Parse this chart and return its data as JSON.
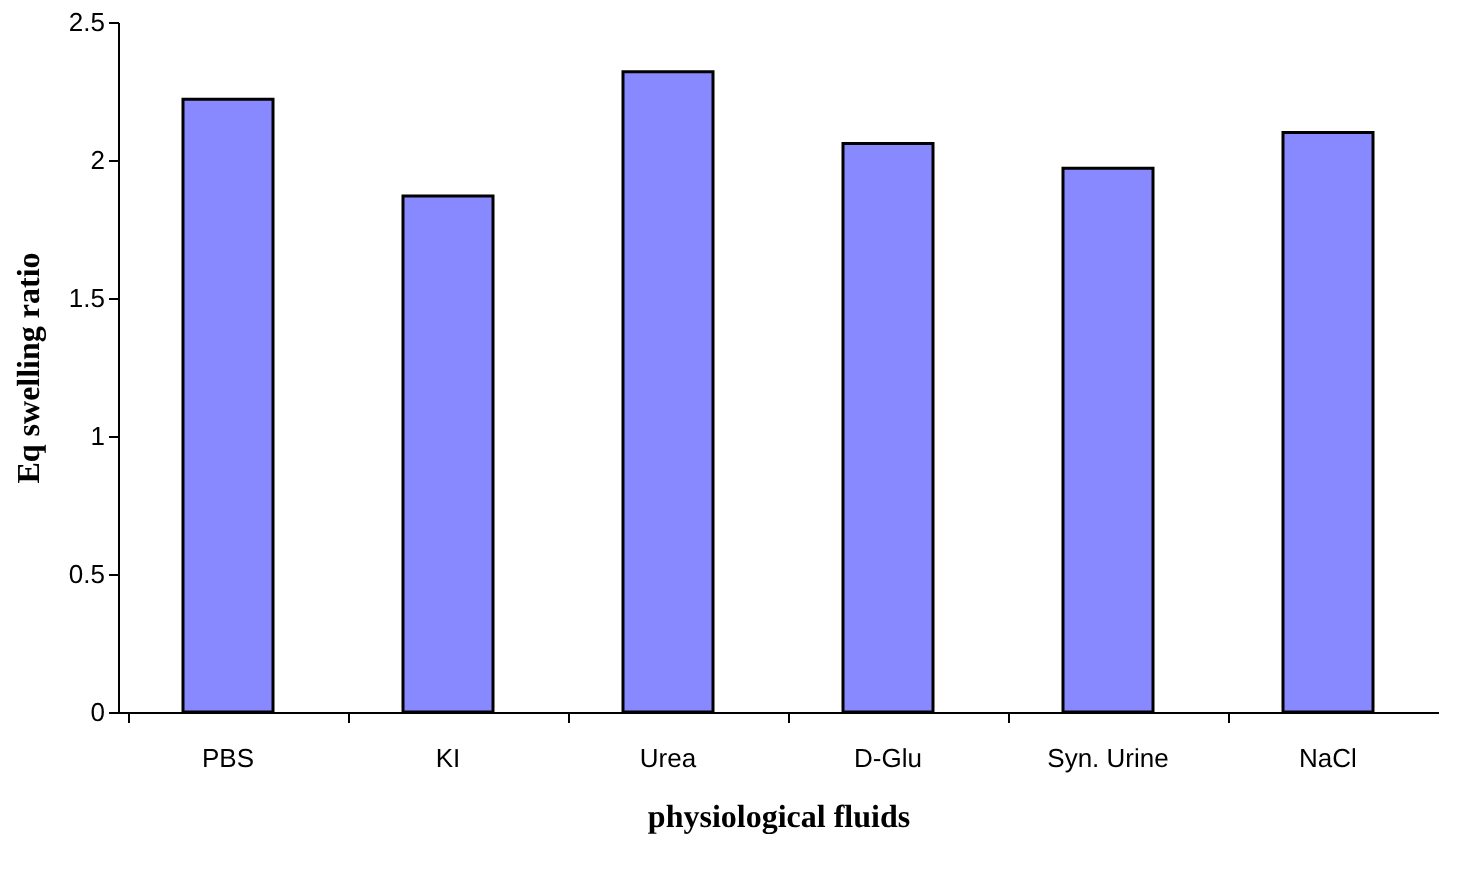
{
  "chart_data": {
    "type": "bar",
    "xlabel": "physiological fluids",
    "ylabel": "Eq swelling ratio",
    "categories": [
      "PBS",
      "KI",
      "Urea",
      "D-Glu",
      "Syn. Urine",
      "NaCl"
    ],
    "values": [
      2.22,
      1.87,
      2.32,
      2.06,
      1.97,
      2.1
    ],
    "color": "#8888ff",
    "ylim": [
      0,
      2.5
    ],
    "yticks": [
      0,
      0.5,
      1,
      1.5,
      2,
      2.5
    ],
    "grid": false
  }
}
